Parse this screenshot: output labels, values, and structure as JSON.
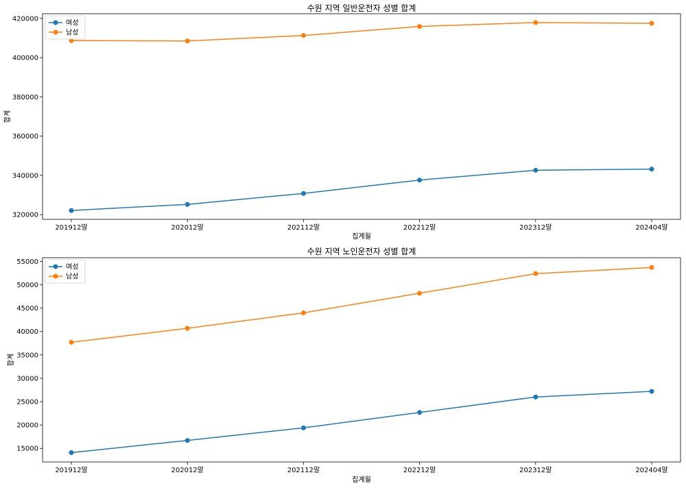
{
  "chart_data": [
    {
      "type": "line",
      "title": "수원 지역 일반운전자 성별 합계",
      "xlabel": "집계월",
      "ylabel": "합계",
      "categories": [
        "201912말",
        "202012말",
        "202112말",
        "202212말",
        "202312말",
        "202404말"
      ],
      "ylim": [
        317600,
        422400
      ],
      "yticks": [
        320000,
        340000,
        360000,
        380000,
        400000,
        420000
      ],
      "grid": false,
      "legend_position": "top-left",
      "series": [
        {
          "name": "여성",
          "color": "#1f77b4",
          "values": [
            322100,
            325200,
            330800,
            337600,
            342600,
            343200
          ]
        },
        {
          "name": "남성",
          "color": "#ff7f0e",
          "values": [
            408700,
            408500,
            411300,
            415900,
            417900,
            417500
          ]
        }
      ]
    },
    {
      "type": "line",
      "title": "수원 지역 노인운전자 성별 합계",
      "xlabel": "집계월",
      "ylabel": "합계",
      "categories": [
        "201912말",
        "202012말",
        "202112말",
        "202212말",
        "202312말",
        "202404말"
      ],
      "ylim": [
        12100,
        55800
      ],
      "yticks": [
        15000,
        20000,
        25000,
        30000,
        35000,
        40000,
        45000,
        50000,
        55000
      ],
      "grid": false,
      "legend_position": "top-left",
      "series": [
        {
          "name": "여성",
          "color": "#1f77b4",
          "values": [
            14100,
            16700,
            19400,
            22700,
            26000,
            27200
          ]
        },
        {
          "name": "남성",
          "color": "#ff7f0e",
          "values": [
            37700,
            40700,
            44000,
            48200,
            52400,
            53700
          ]
        }
      ]
    }
  ]
}
